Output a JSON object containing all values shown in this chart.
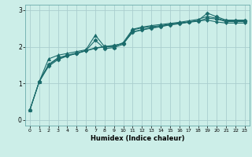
{
  "xlabel": "Humidex (Indice chaleur)",
  "bg_color": "#cceee8",
  "line_color": "#1a6b6b",
  "grid_color": "#aacece",
  "xlim": [
    -0.5,
    23.5
  ],
  "ylim": [
    -0.15,
    3.15
  ],
  "yticks": [
    0,
    1,
    2,
    3
  ],
  "xticks": [
    0,
    1,
    2,
    3,
    4,
    5,
    6,
    7,
    8,
    9,
    10,
    11,
    12,
    13,
    14,
    15,
    16,
    17,
    18,
    19,
    20,
    21,
    22,
    23
  ],
  "lines": [
    {
      "x": [
        0,
        1,
        2,
        3,
        4,
        5,
        6,
        7,
        8,
        9,
        10,
        11,
        12,
        13,
        14,
        15,
        16,
        17,
        18,
        19,
        20,
        21,
        22,
        23
      ],
      "y": [
        0.28,
        1.05,
        1.47,
        1.65,
        1.75,
        1.82,
        1.9,
        2.18,
        1.95,
        1.98,
        2.07,
        2.46,
        2.52,
        2.55,
        2.58,
        2.62,
        2.65,
        2.68,
        2.72,
        2.92,
        2.82,
        2.73,
        2.73,
        2.73
      ],
      "marker": "D",
      "markersize": 2.5
    },
    {
      "x": [
        0,
        1,
        2,
        3,
        4,
        5,
        6,
        7,
        8,
        9,
        10,
        11,
        12,
        13,
        14,
        15,
        16,
        17,
        18,
        19,
        20,
        21,
        22,
        23
      ],
      "y": [
        0.28,
        1.05,
        1.67,
        1.77,
        1.82,
        1.87,
        1.92,
        2.32,
        2.0,
        2.0,
        2.12,
        2.48,
        2.54,
        2.58,
        2.61,
        2.64,
        2.67,
        2.71,
        2.75,
        2.83,
        2.78,
        2.71,
        2.71,
        2.71
      ],
      "marker": "^",
      "markersize": 3
    },
    {
      "x": [
        1,
        2,
        3,
        4,
        5,
        6,
        7,
        8,
        9,
        10,
        11,
        12,
        13,
        14,
        15,
        16,
        17,
        18,
        19,
        20,
        21,
        22,
        23
      ],
      "y": [
        1.05,
        1.52,
        1.7,
        1.77,
        1.83,
        1.9,
        1.97,
        2.01,
        2.04,
        2.09,
        2.4,
        2.46,
        2.51,
        2.55,
        2.6,
        2.63,
        2.67,
        2.7,
        2.78,
        2.76,
        2.69,
        2.69,
        2.69
      ],
      "marker": "D",
      "markersize": 2.5
    },
    {
      "x": [
        0,
        1,
        2,
        3,
        4,
        5,
        6,
        7,
        8,
        9,
        10,
        11,
        12,
        13,
        14,
        15,
        16,
        17,
        18,
        19,
        20,
        21,
        22,
        23
      ],
      "y": [
        0.28,
        1.05,
        1.5,
        1.68,
        1.76,
        1.82,
        1.89,
        1.96,
        2.0,
        2.03,
        2.1,
        2.41,
        2.47,
        2.52,
        2.56,
        2.61,
        2.64,
        2.68,
        2.71,
        2.73,
        2.68,
        2.65,
        2.65,
        2.65
      ],
      "marker": "D",
      "markersize": 2
    }
  ]
}
